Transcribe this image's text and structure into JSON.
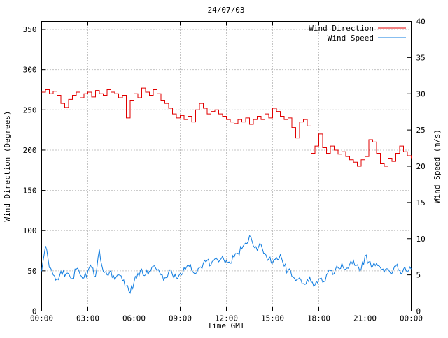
{
  "chart_data": {
    "type": "line",
    "title": "24/07/03",
    "xlabel": "Time GMT",
    "ylabel": "Wind Direction (Degrees)",
    "y2label": "Wind Speed (m/s)",
    "x_start": 0,
    "x_step": 0.25,
    "x_max": 24,
    "x_ticks": {
      "hours": [
        0,
        3,
        6,
        9,
        12,
        15,
        18,
        21,
        24
      ],
      "labels": [
        "00:00",
        "03:00",
        "06:00",
        "09:00",
        "12:00",
        "15:00",
        "18:00",
        "21:00",
        "00:00"
      ]
    },
    "y_left": {
      "min": 0,
      "max": 360,
      "ticks": [
        0,
        50,
        100,
        150,
        200,
        250,
        300,
        350
      ]
    },
    "y_right": {
      "min": 0,
      "max": 40,
      "ticks": [
        0,
        5,
        10,
        15,
        20,
        25,
        30,
        35,
        40
      ]
    },
    "grid": {
      "dotted": true,
      "color": "#8a8a8a"
    },
    "legend_position": "top-right",
    "series": [
      {
        "name": "Wind Direction",
        "axis": "left",
        "color": "#e00000",
        "style": "steps",
        "jitter": 0,
        "values": [
          272,
          275,
          270,
          273,
          268,
          258,
          253,
          263,
          268,
          272,
          265,
          270,
          272,
          266,
          274,
          270,
          268,
          275,
          272,
          270,
          265,
          268,
          240,
          262,
          270,
          265,
          277,
          272,
          268,
          275,
          270,
          262,
          258,
          252,
          245,
          240,
          243,
          238,
          242,
          235,
          250,
          258,
          252,
          245,
          248,
          250,
          245,
          242,
          238,
          235,
          233,
          238,
          235,
          240,
          232,
          238,
          242,
          238,
          245,
          240,
          252,
          248,
          242,
          238,
          240,
          228,
          215,
          235,
          238,
          230,
          196,
          205,
          220,
          203,
          196,
          205,
          200,
          195,
          198,
          192,
          188,
          185,
          180,
          188,
          192,
          213,
          210,
          196,
          183,
          180,
          190,
          186,
          196,
          205,
          198,
          193,
          190
        ]
      },
      {
        "name": "Wind Speed",
        "axis": "right",
        "color": "#0f7ce0",
        "style": "noisy-line",
        "jitter": 0.55,
        "values": [
          5.5,
          9.0,
          6.0,
          5.0,
          4.5,
          5.5,
          4.8,
          5.2,
          4.5,
          5.8,
          5.0,
          4.6,
          5.5,
          6.0,
          4.8,
          8.5,
          5.5,
          5.0,
          5.6,
          4.4,
          5.0,
          4.2,
          3.5,
          2.5,
          4.0,
          5.2,
          5.8,
          5.0,
          5.5,
          6.2,
          5.6,
          5.0,
          4.6,
          5.4,
          5.0,
          4.6,
          5.2,
          6.0,
          6.4,
          5.6,
          5.2,
          6.0,
          6.6,
          7.0,
          6.4,
          7.2,
          6.8,
          7.6,
          7.0,
          6.6,
          7.4,
          8.0,
          8.6,
          9.4,
          10.4,
          9.0,
          8.4,
          9.2,
          8.0,
          7.2,
          6.6,
          7.4,
          7.8,
          6.2,
          5.6,
          4.8,
          4.2,
          4.6,
          3.8,
          4.4,
          4.0,
          3.6,
          4.4,
          4.0,
          5.0,
          5.6,
          5.2,
          6.0,
          6.6,
          5.8,
          6.4,
          7.0,
          6.4,
          5.8,
          7.6,
          6.8,
          6.2,
          6.6,
          6.0,
          5.4,
          5.8,
          5.2,
          6.2,
          5.6,
          5.8,
          5.4,
          5.8
        ]
      }
    ]
  }
}
